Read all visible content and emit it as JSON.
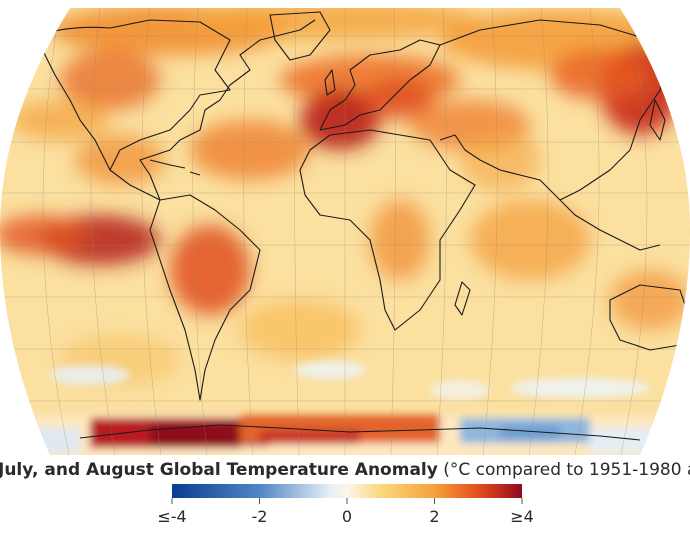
{
  "caption": {
    "bold_text": "July, and August Global Temperature Anomaly",
    "normal_text": " (°C compared to 1951-1980 av"
  },
  "legend": {
    "ticks": [
      "≤-4",
      "-2",
      "0",
      "2",
      "≥4"
    ],
    "values": [
      -4,
      -2,
      0,
      2,
      4
    ],
    "colors": [
      "#0b3d91",
      "#4f86c6",
      "#f3f6f9",
      "#f5b54a",
      "#8e0a1e"
    ]
  },
  "map": {
    "projection": "robinson",
    "background_color": "#fbe3a9"
  }
}
